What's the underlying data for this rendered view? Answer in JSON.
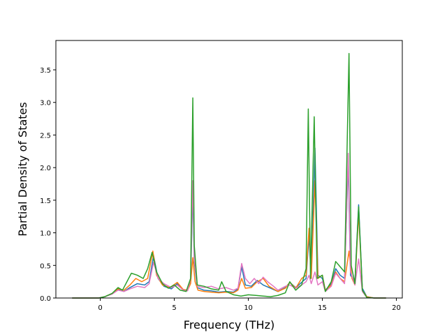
{
  "chart_data": {
    "type": "line",
    "title": "",
    "xlabel": "Frequency (THz)",
    "ylabel": "Partial Density of States",
    "xlim": [
      -3.0,
      20.4
    ],
    "ylim": [
      0,
      3.95
    ],
    "x_ticks": [
      0,
      5,
      10,
      15,
      20
    ],
    "y_ticks": [
      0.0,
      0.5,
      1.0,
      1.5,
      2.0,
      2.5,
      3.0,
      3.5
    ],
    "x_tick_labels": [
      "0",
      "5",
      "10",
      "15",
      "20"
    ],
    "y_tick_labels": [
      "0.0",
      "0.5",
      "1.0",
      "1.5",
      "2.0",
      "2.5",
      "3.0",
      "3.5"
    ],
    "grid": false,
    "legend": "none",
    "series": [
      {
        "color": "#1f77b4",
        "points": [
          [
            -1.9,
            0
          ],
          [
            -0.1,
            0
          ],
          [
            0.3,
            0.02
          ],
          [
            0.8,
            0.07
          ],
          [
            1.2,
            0.13
          ],
          [
            1.6,
            0.1
          ],
          [
            2.0,
            0.16
          ],
          [
            2.5,
            0.22
          ],
          [
            3.0,
            0.2
          ],
          [
            3.3,
            0.25
          ],
          [
            3.6,
            0.65
          ],
          [
            3.9,
            0.3
          ],
          [
            4.3,
            0.18
          ],
          [
            4.8,
            0.14
          ],
          [
            5.2,
            0.22
          ],
          [
            5.6,
            0.13
          ],
          [
            5.9,
            0.12
          ],
          [
            6.1,
            0.25
          ],
          [
            6.25,
            1.65
          ],
          [
            6.35,
            0.55
          ],
          [
            6.55,
            0.16
          ],
          [
            7.0,
            0.12
          ],
          [
            7.5,
            0.11
          ],
          [
            8.0,
            0.09
          ],
          [
            8.5,
            0.1
          ],
          [
            9.0,
            0.09
          ],
          [
            9.3,
            0.14
          ],
          [
            9.55,
            0.48
          ],
          [
            9.8,
            0.2
          ],
          [
            10.2,
            0.18
          ],
          [
            10.6,
            0.27
          ],
          [
            11.0,
            0.2
          ],
          [
            11.5,
            0.15
          ],
          [
            12.0,
            0.1
          ],
          [
            12.5,
            0.16
          ],
          [
            12.8,
            0.24
          ],
          [
            13.2,
            0.16
          ],
          [
            13.6,
            0.24
          ],
          [
            13.9,
            0.3
          ],
          [
            14.1,
            0.95
          ],
          [
            14.25,
            0.3
          ],
          [
            14.5,
            2.3
          ],
          [
            14.7,
            0.35
          ],
          [
            15.0,
            0.3
          ],
          [
            15.2,
            0.12
          ],
          [
            15.6,
            0.22
          ],
          [
            15.9,
            0.45
          ],
          [
            16.2,
            0.35
          ],
          [
            16.5,
            0.3
          ],
          [
            16.75,
            2.1
          ],
          [
            16.9,
            0.35
          ],
          [
            17.2,
            0.25
          ],
          [
            17.45,
            1.43
          ],
          [
            17.7,
            0.15
          ],
          [
            18.0,
            0.02
          ],
          [
            18.5,
            0
          ],
          [
            19.3,
            0
          ]
        ]
      },
      {
        "color": "#ff7f0e",
        "points": [
          [
            -1.9,
            0
          ],
          [
            -0.1,
            0
          ],
          [
            0.3,
            0.02
          ],
          [
            0.8,
            0.07
          ],
          [
            1.2,
            0.14
          ],
          [
            1.6,
            0.12
          ],
          [
            2.0,
            0.2
          ],
          [
            2.4,
            0.3
          ],
          [
            2.8,
            0.25
          ],
          [
            3.2,
            0.3
          ],
          [
            3.55,
            0.72
          ],
          [
            3.8,
            0.35
          ],
          [
            4.2,
            0.2
          ],
          [
            4.7,
            0.16
          ],
          [
            5.2,
            0.24
          ],
          [
            5.6,
            0.13
          ],
          [
            5.9,
            0.12
          ],
          [
            6.1,
            0.22
          ],
          [
            6.25,
            0.62
          ],
          [
            6.4,
            0.25
          ],
          [
            6.6,
            0.12
          ],
          [
            7.0,
            0.1
          ],
          [
            7.5,
            0.09
          ],
          [
            8.0,
            0.08
          ],
          [
            8.5,
            0.09
          ],
          [
            9.0,
            0.08
          ],
          [
            9.3,
            0.12
          ],
          [
            9.55,
            0.3
          ],
          [
            9.8,
            0.15
          ],
          [
            10.2,
            0.16
          ],
          [
            10.6,
            0.25
          ],
          [
            11.0,
            0.3
          ],
          [
            11.4,
            0.18
          ],
          [
            12.0,
            0.1
          ],
          [
            12.5,
            0.15
          ],
          [
            12.8,
            0.24
          ],
          [
            13.2,
            0.15
          ],
          [
            13.6,
            0.3
          ],
          [
            13.9,
            0.35
          ],
          [
            14.1,
            1.07
          ],
          [
            14.25,
            0.3
          ],
          [
            14.5,
            1.8
          ],
          [
            14.7,
            0.3
          ],
          [
            15.0,
            0.35
          ],
          [
            15.2,
            0.12
          ],
          [
            15.6,
            0.2
          ],
          [
            15.9,
            0.4
          ],
          [
            16.2,
            0.3
          ],
          [
            16.5,
            0.25
          ],
          [
            16.8,
            0.72
          ],
          [
            17.0,
            0.3
          ],
          [
            17.2,
            0.2
          ],
          [
            17.45,
            1.3
          ],
          [
            17.7,
            0.12
          ],
          [
            18.0,
            0.02
          ],
          [
            18.5,
            0
          ],
          [
            19.3,
            0
          ]
        ]
      },
      {
        "color": "#e377c2",
        "points": [
          [
            -1.9,
            0
          ],
          [
            -0.1,
            0
          ],
          [
            0.3,
            0.02
          ],
          [
            0.8,
            0.06
          ],
          [
            1.2,
            0.12
          ],
          [
            1.6,
            0.1
          ],
          [
            2.0,
            0.14
          ],
          [
            2.5,
            0.18
          ],
          [
            3.0,
            0.16
          ],
          [
            3.3,
            0.22
          ],
          [
            3.6,
            0.55
          ],
          [
            3.9,
            0.3
          ],
          [
            4.3,
            0.22
          ],
          [
            4.8,
            0.16
          ],
          [
            5.2,
            0.2
          ],
          [
            5.6,
            0.12
          ],
          [
            5.9,
            0.11
          ],
          [
            6.1,
            0.3
          ],
          [
            6.25,
            1.8
          ],
          [
            6.35,
            0.6
          ],
          [
            6.55,
            0.18
          ],
          [
            7.0,
            0.16
          ],
          [
            7.5,
            0.18
          ],
          [
            8.0,
            0.14
          ],
          [
            8.5,
            0.16
          ],
          [
            9.0,
            0.12
          ],
          [
            9.3,
            0.15
          ],
          [
            9.55,
            0.53
          ],
          [
            9.8,
            0.3
          ],
          [
            10.1,
            0.22
          ],
          [
            10.4,
            0.3
          ],
          [
            10.7,
            0.22
          ],
          [
            11.0,
            0.32
          ],
          [
            11.3,
            0.25
          ],
          [
            11.7,
            0.18
          ],
          [
            12.0,
            0.12
          ],
          [
            12.5,
            0.18
          ],
          [
            12.8,
            0.2
          ],
          [
            13.2,
            0.15
          ],
          [
            13.6,
            0.2
          ],
          [
            13.9,
            0.25
          ],
          [
            14.1,
            0.35
          ],
          [
            14.25,
            0.22
          ],
          [
            14.5,
            0.4
          ],
          [
            14.7,
            0.2
          ],
          [
            15.0,
            0.25
          ],
          [
            15.2,
            0.1
          ],
          [
            15.6,
            0.18
          ],
          [
            15.9,
            0.38
          ],
          [
            16.2,
            0.3
          ],
          [
            16.5,
            0.22
          ],
          [
            16.75,
            2.22
          ],
          [
            16.9,
            0.4
          ],
          [
            17.2,
            0.2
          ],
          [
            17.45,
            0.6
          ],
          [
            17.7,
            0.1
          ],
          [
            18.0,
            0.01
          ],
          [
            18.5,
            0
          ],
          [
            19.3,
            0
          ]
        ]
      },
      {
        "color": "#2ca02c",
        "points": [
          [
            -1.9,
            0
          ],
          [
            -0.1,
            0
          ],
          [
            0.3,
            0.02
          ],
          [
            0.8,
            0.07
          ],
          [
            1.2,
            0.16
          ],
          [
            1.5,
            0.12
          ],
          [
            1.8,
            0.25
          ],
          [
            2.1,
            0.38
          ],
          [
            2.5,
            0.35
          ],
          [
            2.9,
            0.3
          ],
          [
            3.2,
            0.45
          ],
          [
            3.5,
            0.7
          ],
          [
            3.8,
            0.4
          ],
          [
            4.2,
            0.22
          ],
          [
            4.6,
            0.15
          ],
          [
            5.0,
            0.2
          ],
          [
            5.4,
            0.12
          ],
          [
            5.8,
            0.1
          ],
          [
            6.1,
            0.3
          ],
          [
            6.25,
            3.07
          ],
          [
            6.35,
            0.8
          ],
          [
            6.55,
            0.2
          ],
          [
            7.0,
            0.18
          ],
          [
            7.5,
            0.14
          ],
          [
            8.0,
            0.12
          ],
          [
            8.2,
            0.25
          ],
          [
            8.5,
            0.1
          ],
          [
            9.0,
            0.05
          ],
          [
            9.5,
            0.03
          ],
          [
            10.0,
            0.05
          ],
          [
            10.5,
            0.04
          ],
          [
            11.0,
            0.03
          ],
          [
            11.5,
            0.02
          ],
          [
            12.0,
            0.04
          ],
          [
            12.5,
            0.08
          ],
          [
            12.8,
            0.25
          ],
          [
            13.2,
            0.12
          ],
          [
            13.6,
            0.2
          ],
          [
            13.9,
            0.45
          ],
          [
            14.05,
            2.9
          ],
          [
            14.2,
            0.3
          ],
          [
            14.45,
            2.78
          ],
          [
            14.65,
            0.3
          ],
          [
            15.0,
            0.35
          ],
          [
            15.2,
            0.1
          ],
          [
            15.6,
            0.25
          ],
          [
            15.9,
            0.56
          ],
          [
            16.2,
            0.48
          ],
          [
            16.5,
            0.4
          ],
          [
            16.8,
            3.75
          ],
          [
            16.95,
            0.5
          ],
          [
            17.2,
            0.22
          ],
          [
            17.45,
            1.4
          ],
          [
            17.7,
            0.12
          ],
          [
            18.0,
            0.01
          ],
          [
            18.5,
            0
          ],
          [
            19.3,
            0
          ]
        ]
      }
    ]
  }
}
